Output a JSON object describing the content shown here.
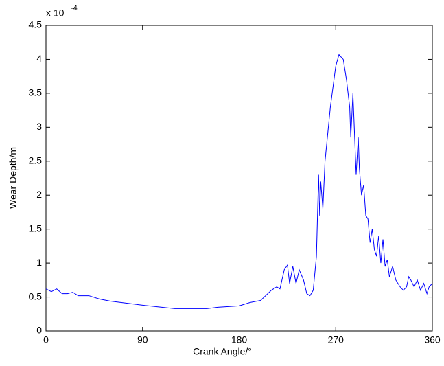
{
  "chart_data": {
    "type": "line",
    "x_label": "Crank Angle/°",
    "y_label": "Wear Depth/m",
    "y_multiplier": "x 10",
    "y_exponent": "-4",
    "x": [
      0,
      5,
      10,
      15,
      20,
      25,
      30,
      40,
      50,
      60,
      90,
      120,
      150,
      160,
      180,
      190,
      200,
      210,
      215,
      218,
      222,
      225,
      227,
      230,
      233,
      236,
      240,
      243,
      246,
      249,
      252,
      254,
      255,
      256,
      258,
      260,
      265,
      270,
      273,
      277,
      280,
      283,
      284,
      286,
      287,
      289,
      291,
      292,
      294,
      296,
      298,
      300,
      302,
      304,
      306,
      308,
      310,
      312,
      314,
      316,
      318,
      320,
      323,
      326,
      330,
      333,
      336,
      338,
      340,
      343,
      346,
      349,
      352,
      355,
      357,
      360
    ],
    "series": [
      {
        "name": "Wear depth",
        "color": "#0000ff",
        "values": [
          0.62,
          0.58,
          0.62,
          0.55,
          0.55,
          0.57,
          0.52,
          0.52,
          0.47,
          0.44,
          0.38,
          0.33,
          0.33,
          0.35,
          0.37,
          0.42,
          0.45,
          0.6,
          0.65,
          0.62,
          0.9,
          0.97,
          0.7,
          0.95,
          0.7,
          0.9,
          0.75,
          0.55,
          0.52,
          0.6,
          1.1,
          2.3,
          1.7,
          2.2,
          1.8,
          2.5,
          3.3,
          3.9,
          4.07,
          4.0,
          3.7,
          3.3,
          2.85,
          3.5,
          3.1,
          2.3,
          2.85,
          2.4,
          2.0,
          2.15,
          1.7,
          1.65,
          1.3,
          1.5,
          1.2,
          1.1,
          1.4,
          1.0,
          1.35,
          0.95,
          1.05,
          0.8,
          0.95,
          0.75,
          0.65,
          0.6,
          0.65,
          0.8,
          0.75,
          0.65,
          0.75,
          0.6,
          0.7,
          0.55,
          0.65,
          0.7
        ]
      }
    ],
    "xlim": [
      0,
      360
    ],
    "xticks": [
      0,
      90,
      180,
      270,
      360
    ],
    "ylim": [
      0,
      4.5
    ],
    "yticks": [
      0,
      0.5,
      1,
      1.5,
      2,
      2.5,
      3,
      3.5,
      4,
      4.5
    ],
    "grid": false
  }
}
